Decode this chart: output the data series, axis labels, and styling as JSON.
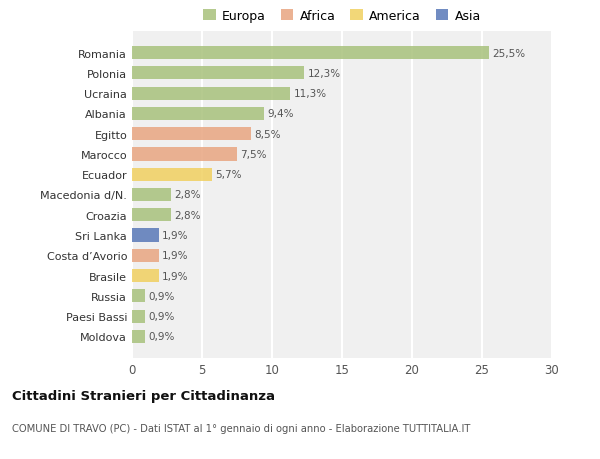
{
  "countries": [
    "Romania",
    "Polonia",
    "Ucraina",
    "Albania",
    "Egitto",
    "Marocco",
    "Ecuador",
    "Macedonia d/N.",
    "Croazia",
    "Sri Lanka",
    "Costa d’Avorio",
    "Brasile",
    "Russia",
    "Paesi Bassi",
    "Moldova"
  ],
  "values": [
    25.5,
    12.3,
    11.3,
    9.4,
    8.5,
    7.5,
    5.7,
    2.8,
    2.8,
    1.9,
    1.9,
    1.9,
    0.9,
    0.9,
    0.9
  ],
  "labels": [
    "25,5%",
    "12,3%",
    "11,3%",
    "9,4%",
    "8,5%",
    "7,5%",
    "5,7%",
    "2,8%",
    "2,8%",
    "1,9%",
    "1,9%",
    "1,9%",
    "0,9%",
    "0,9%",
    "0,9%"
  ],
  "colors": [
    "#a8c17c",
    "#a8c17c",
    "#a8c17c",
    "#a8c17c",
    "#e8a580",
    "#e8a580",
    "#f0d060",
    "#a8c17c",
    "#a8c17c",
    "#5878b8",
    "#e8a580",
    "#f0d060",
    "#a8c17c",
    "#a8c17c",
    "#a8c17c"
  ],
  "legend_labels": [
    "Europa",
    "Africa",
    "America",
    "Asia"
  ],
  "legend_colors": [
    "#a8c17c",
    "#e8a580",
    "#f0d060",
    "#5878b8"
  ],
  "title": "Cittadini Stranieri per Cittadinanza",
  "subtitle": "COMUNE DI TRAVO (PC) - Dati ISTAT al 1° gennaio di ogni anno - Elaborazione TUTTITALIA.IT",
  "xlim": [
    0,
    30
  ],
  "xticks": [
    0,
    5,
    10,
    15,
    20,
    25,
    30
  ],
  "background_color": "#ffffff",
  "plot_bg_color": "#f0f0f0",
  "grid_color": "#ffffff",
  "bar_height": 0.65
}
